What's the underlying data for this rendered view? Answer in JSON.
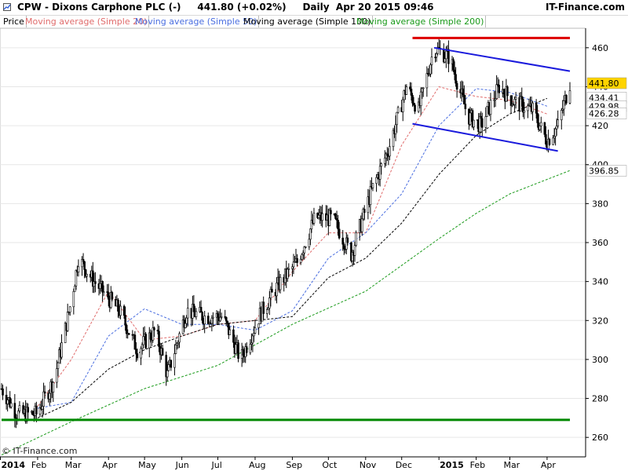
{
  "header": {
    "title_text": "CPW - Dixons Carphone PLC (-)     441.80 (+0.02%)     Daily  Apr 20 2015 09:46",
    "brand": "IT-Finance.com"
  },
  "legend": {
    "items": [
      {
        "label": "Price",
        "color": "#000000"
      },
      {
        "label": "Moving average (Simple 20)",
        "color": "#e06c6c"
      },
      {
        "label": "Moving average (Simple 50)",
        "color": "#4a6ee0"
      },
      {
        "label": "Moving average (Simple 100)",
        "color": "#000000"
      },
      {
        "label": "Moving average (Simple 200)",
        "color": "#1a9a1a"
      }
    ]
  },
  "footer": {
    "copyright": "© IT-Finance.com"
  },
  "chart_data": {
    "type": "candlestick",
    "ylim": [
      250,
      470
    ],
    "y_ticks": [
      260,
      280,
      300,
      320,
      340,
      360,
      380,
      400,
      420,
      440,
      460
    ],
    "x_range": [
      "2014-01-02",
      "2015-04-20"
    ],
    "x_ticks": [
      {
        "label": "2014",
        "date": "2014-01-01",
        "bold": true
      },
      {
        "label": "Feb",
        "date": "2014-02-01"
      },
      {
        "label": "Mar",
        "date": "2014-03-01"
      },
      {
        "label": "Apr",
        "date": "2014-04-01"
      },
      {
        "label": "May",
        "date": "2014-05-01"
      },
      {
        "label": "Jun",
        "date": "2014-06-01"
      },
      {
        "label": "Jul",
        "date": "2014-07-01"
      },
      {
        "label": "Aug",
        "date": "2014-08-01"
      },
      {
        "label": "Sep",
        "date": "2014-09-01"
      },
      {
        "label": "Oct",
        "date": "2014-10-01"
      },
      {
        "label": "Nov",
        "date": "2014-11-01"
      },
      {
        "label": "Dec",
        "date": "2014-12-01"
      },
      {
        "label": "2015",
        "date": "2015-01-01",
        "bold": true
      },
      {
        "label": "Feb",
        "date": "2015-02-01"
      },
      {
        "label": "Mar",
        "date": "2015-03-01"
      },
      {
        "label": "Apr",
        "date": "2015-04-01"
      }
    ],
    "price_path": [
      [
        "2014-01-02",
        285
      ],
      [
        "2014-01-15",
        272
      ],
      [
        "2014-01-31",
        272
      ],
      [
        "2014-02-15",
        290
      ],
      [
        "2014-03-01",
        330
      ],
      [
        "2014-03-07",
        352
      ],
      [
        "2014-03-20",
        340
      ],
      [
        "2014-04-10",
        325
      ],
      [
        "2014-04-25",
        305
      ],
      [
        "2014-05-10",
        315
      ],
      [
        "2014-05-20",
        292
      ],
      [
        "2014-06-05",
        325
      ],
      [
        "2014-06-20",
        322
      ],
      [
        "2014-07-05",
        322
      ],
      [
        "2014-07-20",
        300
      ],
      [
        "2014-08-05",
        323
      ],
      [
        "2014-08-20",
        338
      ],
      [
        "2014-09-05",
        350
      ],
      [
        "2014-09-20",
        373
      ],
      [
        "2014-10-05",
        372
      ],
      [
        "2014-10-20",
        354
      ],
      [
        "2014-11-05",
        385
      ],
      [
        "2014-11-20",
        408
      ],
      [
        "2014-12-05",
        440
      ],
      [
        "2014-12-15",
        428
      ],
      [
        "2014-12-28",
        460
      ],
      [
        "2015-01-10",
        455
      ],
      [
        "2015-01-25",
        425
      ],
      [
        "2015-02-05",
        420
      ],
      [
        "2015-02-20",
        440
      ],
      [
        "2015-03-05",
        432
      ],
      [
        "2015-03-20",
        428
      ],
      [
        "2015-04-01",
        412
      ],
      [
        "2015-04-10",
        420
      ],
      [
        "2015-04-20",
        442
      ]
    ],
    "series": [
      {
        "name": "Moving average (Simple 20)",
        "color": "#e06c6c",
        "style": "dashed",
        "points": [
          [
            "2014-02-01",
            276
          ],
          [
            "2014-03-01",
            300
          ],
          [
            "2014-04-01",
            335
          ],
          [
            "2014-05-01",
            310
          ],
          [
            "2014-06-01",
            312
          ],
          [
            "2014-07-01",
            318
          ],
          [
            "2014-08-01",
            320
          ],
          [
            "2014-09-01",
            345
          ],
          [
            "2014-10-01",
            365
          ],
          [
            "2014-11-01",
            365
          ],
          [
            "2014-12-01",
            410
          ],
          [
            "2015-01-01",
            440
          ],
          [
            "2015-02-01",
            435
          ],
          [
            "2015-03-01",
            433
          ],
          [
            "2015-04-01",
            426
          ]
        ]
      },
      {
        "name": "Moving average (Simple 50)",
        "color": "#4a6ee0",
        "style": "dashed",
        "points": [
          [
            "2014-02-01",
            275
          ],
          [
            "2014-03-01",
            278
          ],
          [
            "2014-04-01",
            312
          ],
          [
            "2014-05-01",
            326
          ],
          [
            "2014-06-01",
            318
          ],
          [
            "2014-07-01",
            318
          ],
          [
            "2014-08-01",
            315
          ],
          [
            "2014-09-01",
            325
          ],
          [
            "2014-10-01",
            352
          ],
          [
            "2014-11-01",
            365
          ],
          [
            "2014-12-01",
            385
          ],
          [
            "2015-01-01",
            420
          ],
          [
            "2015-02-01",
            439
          ],
          [
            "2015-03-01",
            437
          ],
          [
            "2015-04-01",
            430
          ]
        ]
      },
      {
        "name": "Moving average (Simple 100)",
        "color": "#000000",
        "style": "dashed",
        "points": [
          [
            "2014-02-01",
            270
          ],
          [
            "2014-03-01",
            278
          ],
          [
            "2014-04-01",
            295
          ],
          [
            "2014-05-01",
            305
          ],
          [
            "2014-06-01",
            312
          ],
          [
            "2014-07-01",
            318
          ],
          [
            "2014-08-01",
            320
          ],
          [
            "2014-09-01",
            322
          ],
          [
            "2014-10-01",
            342
          ],
          [
            "2014-11-01",
            352
          ],
          [
            "2014-12-01",
            370
          ],
          [
            "2015-01-01",
            395
          ],
          [
            "2015-02-01",
            415
          ],
          [
            "2015-03-01",
            426
          ],
          [
            "2015-04-01",
            434
          ]
        ]
      },
      {
        "name": "Moving average (Simple 200)",
        "color": "#1a9a1a",
        "style": "dashed",
        "points": [
          [
            "2014-01-02",
            251
          ],
          [
            "2014-03-01",
            268
          ],
          [
            "2014-05-01",
            285
          ],
          [
            "2014-07-01",
            297
          ],
          [
            "2014-09-01",
            318
          ],
          [
            "2014-11-01",
            335
          ],
          [
            "2015-01-01",
            362
          ],
          [
            "2015-02-01",
            375
          ],
          [
            "2015-03-01",
            385
          ],
          [
            "2015-04-20",
            397
          ]
        ]
      }
    ],
    "last_values": [
      {
        "label": "441.80",
        "value": 441.8,
        "bg": "#ffd400",
        "fg": "#000000"
      },
      {
        "label": "434.41",
        "value": 434.41,
        "bg": "#ffffff",
        "fg": "#000000"
      },
      {
        "label": "429.98",
        "value": 429.98,
        "bg": "#ffffff",
        "fg": "#3344cc"
      },
      {
        "label": "426.28",
        "value": 426.28,
        "bg": "#ffffff",
        "fg": "#cc4444"
      },
      {
        "label": "396.85",
        "value": 396.85,
        "bg": "#ffffff",
        "fg": "#1a9a1a"
      }
    ],
    "drawn_lines": [
      {
        "name": "resistance-line",
        "color": "#dd0000",
        "from": [
          "2014-12-10",
          465
        ],
        "to": [
          "2015-04-20",
          465
        ]
      },
      {
        "name": "support-line",
        "color": "#008800",
        "from": [
          "2014-01-02",
          269
        ],
        "to": [
          "2015-04-20",
          269
        ]
      },
      {
        "name": "channel-upper-line",
        "color": "#1a1adc",
        "from": [
          "2014-12-28",
          460
        ],
        "to": [
          "2015-04-20",
          448
        ]
      },
      {
        "name": "channel-lower-line",
        "color": "#1a1adc",
        "from": [
          "2014-12-10",
          421
        ],
        "to": [
          "2015-04-10",
          407
        ]
      }
    ]
  }
}
